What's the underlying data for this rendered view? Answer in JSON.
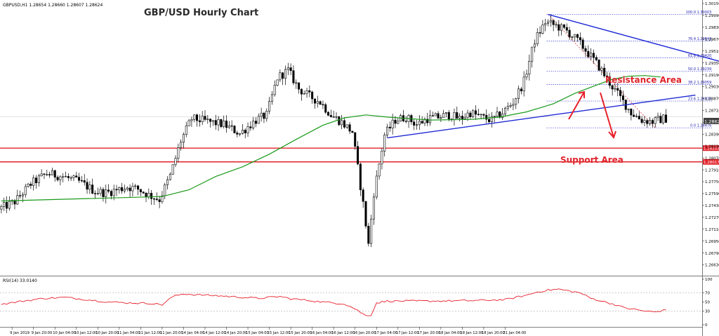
{
  "chart_data": {
    "type": "candlestick",
    "title": "GBP/USD Hourly Chart",
    "symbol_line": "GBPUSD,H1  1.28654 1.28660 1.28607 1.28624",
    "price_axis": {
      "ylim": [
        1.2655,
        1.3015
      ],
      "ticks": [
        "1.30150",
        "1.29990",
        "1.29830",
        "1.29670",
        "1.29510",
        "1.29350",
        "1.29190",
        "1.29030",
        "1.28870",
        "1.28710",
        "1.28550",
        "1.28390",
        "1.28230",
        "1.28070",
        "1.27910",
        "1.27750",
        "1.27590",
        "1.27430",
        "1.27270",
        "1.27110",
        "1.26950",
        "1.26790",
        "1.26630"
      ]
    },
    "current_price": {
      "label": "1.28624",
      "value": 1.28624
    },
    "x_tick_labels": [
      "9 Jan 2019",
      "9 Jan 20:00",
      "10 Jan 04:00",
      "10 Jan 12:00",
      "10 Jan 20:00",
      "11 Jan 04:00",
      "11 Jan 12:00",
      "11 Jan 20:00",
      "14 Jan 04:00",
      "14 Jan 12:00",
      "14 Jan 20:00",
      "15 Jan 04:00",
      "15 Jan 12:00",
      "15 Jan 20:00",
      "16 Jan 04:00",
      "16 Jan 12:00",
      "16 Jan 20:00",
      "17 Jan 04:00",
      "17 Jan 12:00",
      "17 Jan 20:00",
      "18 Jan 04:00",
      "18 Jan 12:00",
      "18 Jan 20:00",
      "21 Jan 04:00"
    ],
    "price_path": [
      [
        0,
        1.2738
      ],
      [
        6,
        1.2748
      ],
      [
        12,
        1.2772
      ],
      [
        18,
        1.2786
      ],
      [
        24,
        1.2782
      ],
      [
        30,
        1.2775
      ],
      [
        36,
        1.2762
      ],
      [
        40,
        1.276
      ],
      [
        44,
        1.2764
      ],
      [
        48,
        1.2768
      ],
      [
        52,
        1.2765
      ],
      [
        56,
        1.2757
      ],
      [
        60,
        1.2751
      ],
      [
        64,
        1.2783
      ],
      [
        68,
        1.283
      ],
      [
        72,
        1.286
      ],
      [
        78,
        1.2856
      ],
      [
        84,
        1.2852
      ],
      [
        90,
        1.284
      ],
      [
        96,
        1.2858
      ],
      [
        100,
        1.2865
      ],
      [
        104,
        1.2915
      ],
      [
        108,
        1.2925
      ],
      [
        112,
        1.29
      ],
      [
        116,
        1.289
      ],
      [
        120,
        1.2882
      ],
      [
        124,
        1.2865
      ],
      [
        128,
        1.2855
      ],
      [
        132,
        1.2842
      ],
      [
        136,
        1.2745
      ],
      [
        138,
        1.269
      ],
      [
        140,
        1.276
      ],
      [
        144,
        1.2838
      ],
      [
        148,
        1.2858
      ],
      [
        152,
        1.2862
      ],
      [
        156,
        1.2852
      ],
      [
        160,
        1.286
      ],
      [
        164,
        1.2862
      ],
      [
        168,
        1.2865
      ],
      [
        172,
        1.286
      ],
      [
        176,
        1.2868
      ],
      [
        180,
        1.2862
      ],
      [
        184,
        1.2858
      ],
      [
        188,
        1.2868
      ],
      [
        192,
        1.2882
      ],
      [
        196,
        1.291
      ],
      [
        200,
        1.2965
      ],
      [
        204,
        1.299
      ],
      [
        208,
        1.2985
      ],
      [
        212,
        1.2978
      ],
      [
        216,
        1.2965
      ],
      [
        220,
        1.2948
      ],
      [
        224,
        1.293
      ],
      [
        228,
        1.2908
      ],
      [
        232,
        1.2888
      ],
      [
        236,
        1.2868
      ],
      [
        240,
        1.2858
      ],
      [
        244,
        1.2856
      ],
      [
        248,
        1.286
      ]
    ],
    "moving_average": [
      [
        0,
        1.2749
      ],
      [
        20,
        1.2751
      ],
      [
        40,
        1.2753
      ],
      [
        60,
        1.2755
      ],
      [
        70,
        1.2764
      ],
      [
        80,
        1.2782
      ],
      [
        90,
        1.2795
      ],
      [
        100,
        1.2812
      ],
      [
        110,
        1.2832
      ],
      [
        120,
        1.2851
      ],
      [
        128,
        1.2861
      ],
      [
        136,
        1.2865
      ],
      [
        144,
        1.2862
      ],
      [
        160,
        1.2858
      ],
      [
        176,
        1.2859
      ],
      [
        186,
        1.2862
      ],
      [
        196,
        1.2869
      ],
      [
        206,
        1.288
      ],
      [
        214,
        1.2894
      ],
      [
        222,
        1.2905
      ],
      [
        228,
        1.2913
      ],
      [
        234,
        1.2917
      ],
      [
        240,
        1.2918
      ],
      [
        246,
        1.2916
      ]
    ],
    "fibonacci": [
      {
        "label": "100.0 1.30003",
        "value": 1.30003
      },
      {
        "label": "76.4 1.29643",
        "value": 1.29643
      },
      {
        "label": "61.8 1.29420",
        "value": 1.2942
      },
      {
        "label": "50.0 1.29239",
        "value": 1.29239
      },
      {
        "label": "38.2 1.29059",
        "value": 1.29059
      },
      {
        "label": "23.6 1.28836",
        "value": 1.28836
      },
      {
        "label": "0.0 1.28476",
        "value": 1.28476
      }
    ],
    "support_lines": [
      {
        "label": "1.28202",
        "value": 1.28202
      },
      {
        "label": "1.28017",
        "value": 1.28017
      }
    ],
    "trend_lines": [
      {
        "name": "resistance",
        "from": [
          1.30003,
          204
        ],
        "to": [
          1.29253,
          280
        ]
      },
      {
        "name": "support",
        "from": [
          1.2834,
          144
        ],
        "to": [
          1.28916,
          259
        ]
      }
    ],
    "annotations": {
      "resistance": "Resistance Area",
      "support": "Support Area"
    },
    "rsi": {
      "title": "RSI(14) 33.0140",
      "ylim": [
        0,
        100
      ],
      "ticks": [
        "100",
        "70",
        "50",
        "30",
        "0"
      ],
      "levels": [
        70,
        30
      ],
      "path": [
        [
          0,
          45
        ],
        [
          8,
          52
        ],
        [
          16,
          58
        ],
        [
          24,
          60
        ],
        [
          32,
          55
        ],
        [
          40,
          50
        ],
        [
          48,
          48
        ],
        [
          56,
          47
        ],
        [
          60,
          44
        ],
        [
          64,
          62
        ],
        [
          68,
          68
        ],
        [
          72,
          66
        ],
        [
          80,
          64
        ],
        [
          88,
          61
        ],
        [
          96,
          58
        ],
        [
          104,
          62
        ],
        [
          108,
          57
        ],
        [
          112,
          55
        ],
        [
          120,
          50
        ],
        [
          128,
          46
        ],
        [
          132,
          35
        ],
        [
          136,
          20
        ],
        [
          138,
          22
        ],
        [
          140,
          48
        ],
        [
          144,
          52
        ],
        [
          160,
          52
        ],
        [
          176,
          53
        ],
        [
          188,
          55
        ],
        [
          196,
          65
        ],
        [
          200,
          72
        ],
        [
          204,
          76
        ],
        [
          208,
          78
        ],
        [
          212,
          74
        ],
        [
          216,
          70
        ],
        [
          220,
          58
        ],
        [
          224,
          52
        ],
        [
          228,
          46
        ],
        [
          232,
          38
        ],
        [
          236,
          34
        ],
        [
          240,
          30
        ],
        [
          244,
          28
        ],
        [
          248,
          33
        ]
      ]
    }
  }
}
